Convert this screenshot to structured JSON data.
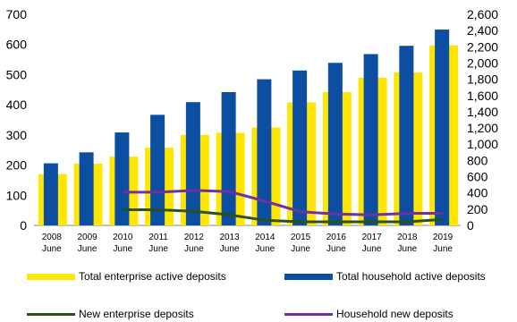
{
  "chart_data": {
    "type": "bar",
    "title": "",
    "title_fragment": "",
    "categories": [
      [
        "2008",
        "June"
      ],
      [
        "2009",
        "June"
      ],
      [
        "2010",
        "June"
      ],
      [
        "2011",
        "June"
      ],
      [
        "2012",
        "June"
      ],
      [
        "2013",
        "June"
      ],
      [
        "2014",
        "June"
      ],
      [
        "2015",
        "June"
      ],
      [
        "2016",
        "June"
      ],
      [
        "2017",
        "June"
      ],
      [
        "2018",
        "June"
      ],
      [
        "2019",
        "June"
      ]
    ],
    "left_axis": {
      "min": 0,
      "max": 700,
      "ticks": [
        "0",
        "100",
        "200",
        "300",
        "400",
        "500",
        "600",
        "700"
      ]
    },
    "right_axis": {
      "min": 0,
      "max": 2600,
      "ticks": [
        "0",
        "200",
        "400",
        "600",
        "800",
        "1,000",
        "1,200",
        "1,400",
        "1,600",
        "1,800",
        "2,000",
        "2,200",
        "2,400",
        "2,600"
      ]
    },
    "series": [
      {
        "name": "Total enterprise active deposits",
        "kind": "bar",
        "axis": "left",
        "color": "#FFE600",
        "values": [
          170,
          205,
          228,
          258,
          300,
          307,
          325,
          408,
          442,
          490,
          507,
          597
        ]
      },
      {
        "name": "Total household active deposits",
        "kind": "bar",
        "axis": "right",
        "color": "#0B4EA2",
        "values": [
          765,
          900,
          1145,
          1362,
          1518,
          1642,
          1800,
          1908,
          2002,
          2110,
          2212,
          2412
        ]
      },
      {
        "name": "New enterprise deposits",
        "kind": "line",
        "axis": "left",
        "color": "#2D5016",
        "values": [
          null,
          null,
          52,
          52,
          47,
          35,
          17,
          12,
          12,
          12,
          12,
          20
        ]
      },
      {
        "name": "Household new deposits",
        "kind": "line",
        "axis": "left",
        "color": "#7030A0",
        "values": [
          null,
          null,
          110,
          110,
          116,
          112,
          80,
          45,
          38,
          35,
          40,
          40
        ]
      }
    ]
  }
}
